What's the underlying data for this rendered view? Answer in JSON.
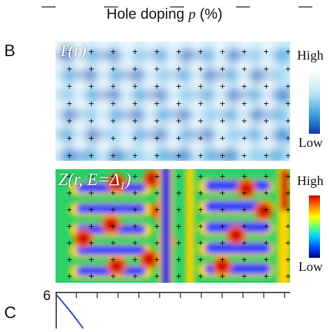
{
  "top_axis": {
    "title_prefix": "Hole doping ",
    "title_var": "p",
    "title_suffix": " (%)"
  },
  "panel_b": {
    "letter": "B",
    "map1": {
      "title": "T(r)",
      "legend_high": "High",
      "legend_low": "Low",
      "colors": [
        "#ffffff",
        "#bfe6f7",
        "#3aa0dc",
        "#0a3aa8"
      ]
    },
    "map2": {
      "title": "Z(r, E=Δ1)",
      "title_part1": "Z(r, E=Δ",
      "title_sub": "1",
      "title_part2": ")",
      "legend_high": "High",
      "legend_low": "Low",
      "colors": [
        "#00008b",
        "#0050ff",
        "#00d0ff",
        "#6aff7a",
        "#ffff00",
        "#ff7a00",
        "#d00000"
      ]
    }
  },
  "panel_c": {
    "letter": "C",
    "y_tick_label": "6"
  }
}
